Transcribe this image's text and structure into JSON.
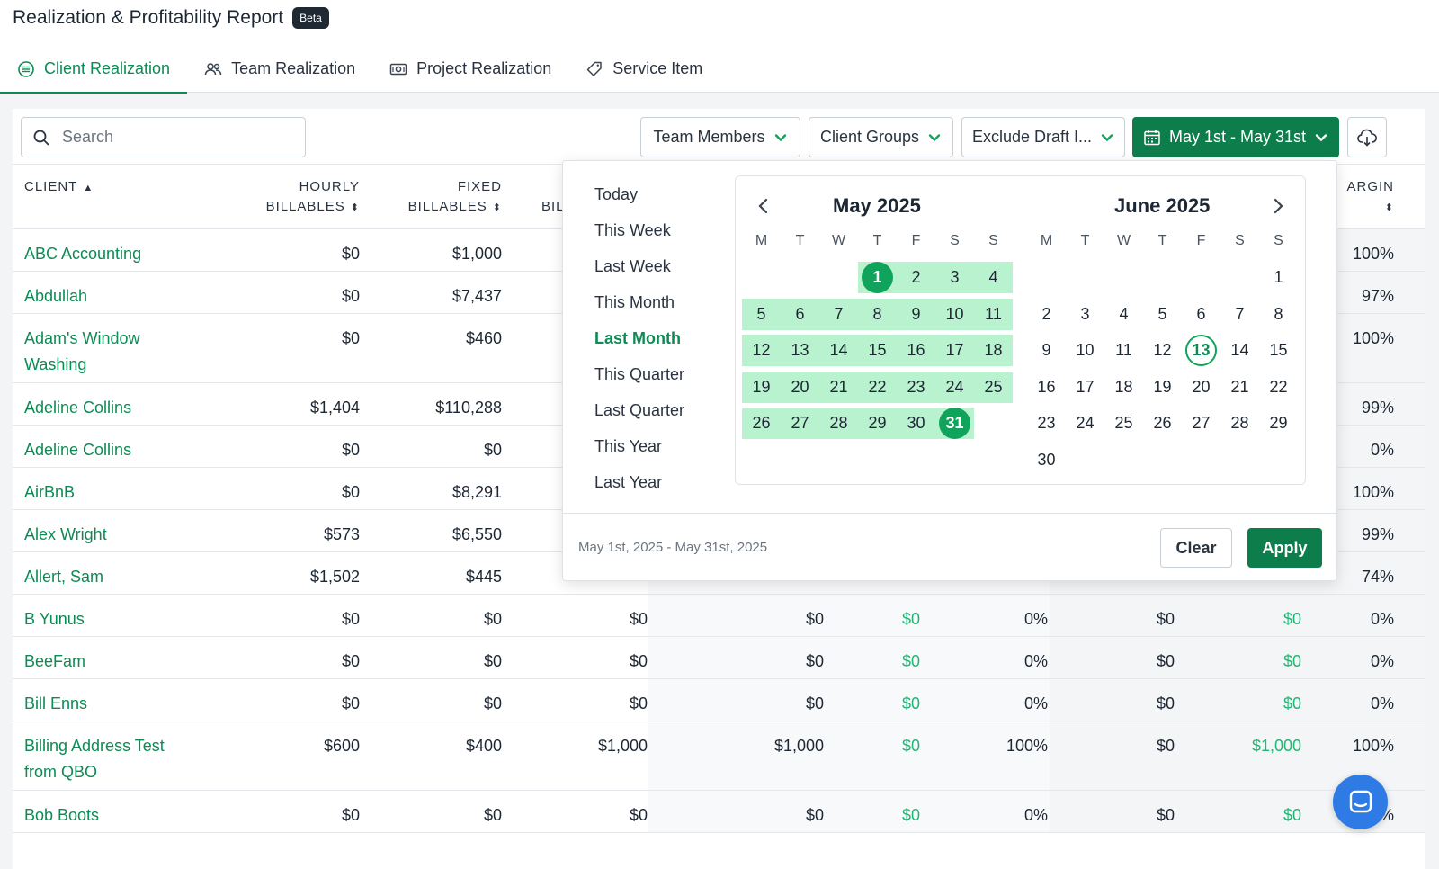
{
  "header": {
    "title": "Realization & Profitability Report",
    "badge": "Beta"
  },
  "tabs": [
    {
      "label": "Client Realization",
      "icon": "list-circle-icon",
      "active": true
    },
    {
      "label": "Team Realization",
      "icon": "users-icon",
      "active": false
    },
    {
      "label": "Project Realization",
      "icon": "money-icon",
      "active": false
    },
    {
      "label": "Service Item",
      "icon": "tag-icon",
      "active": false
    }
  ],
  "toolbar": {
    "search_placeholder": "Search",
    "team_members": "Team Members",
    "client_groups": "Client Groups",
    "exclude_draft": "Exclude Draft I...",
    "date_range": "May 1st - May 31st"
  },
  "columns": {
    "client": "CLIENT",
    "hourly_1": "HOURLY",
    "hourly_2": "BILLABLES",
    "fixed_1": "FIXED",
    "fixed_2": "BILLABLES",
    "bil": "BIL",
    "margin": "ARGIN"
  },
  "rows": [
    {
      "client": "ABC Accounting",
      "hourly": "$0",
      "fixed": "$1,000",
      "margin": "100%"
    },
    {
      "client": "Abdullah",
      "hourly": "$0",
      "fixed": "$7,437",
      "margin": "97%"
    },
    {
      "client": "Adam's Window Washing",
      "hourly": "$0",
      "fixed": "$460",
      "margin": "100%"
    },
    {
      "client": "Adeline Collins",
      "hourly": "$1,404",
      "fixed": "$110,288",
      "margin": "99%"
    },
    {
      "client": "Adeline Collins",
      "hourly": "$0",
      "fixed": "$0",
      "margin": "0%"
    },
    {
      "client": "AirBnB",
      "hourly": "$0",
      "fixed": "$8,291",
      "margin": "100%"
    },
    {
      "client": "Alex Wright",
      "hourly": "$573",
      "fixed": "$6,550",
      "margin": "99%"
    },
    {
      "client": "Allert, Sam",
      "hourly": "$1,502",
      "fixed": "$445",
      "margin": "74%"
    },
    {
      "client": "B Yunus",
      "hourly": "$0",
      "fixed": "$0",
      "total": "$0",
      "c4": "$0",
      "c5": "$0",
      "c6": "0%",
      "c7": "$0",
      "c8": "$0",
      "margin": "0%"
    },
    {
      "client": "BeeFam",
      "hourly": "$0",
      "fixed": "$0",
      "total": "$0",
      "c4": "$0",
      "c5": "$0",
      "c6": "0%",
      "c7": "$0",
      "c8": "$0",
      "margin": "0%"
    },
    {
      "client": "Bill Enns",
      "hourly": "$0",
      "fixed": "$0",
      "total": "$0",
      "c4": "$0",
      "c5": "$0",
      "c6": "0%",
      "c7": "$0",
      "c8": "$0",
      "margin": "0%"
    },
    {
      "client": "Billing Address Test from QBO",
      "hourly": "$600",
      "fixed": "$400",
      "total": "$1,000",
      "c4": "$1,000",
      "c5": "$0",
      "c6": "100%",
      "c7": "$0",
      "c8": "$1,000",
      "margin": "100%"
    },
    {
      "client": "Bob Boots",
      "hourly": "$0",
      "fixed": "$0",
      "total": "$0",
      "c4": "$0",
      "c5": "$0",
      "c6": "0%",
      "c7": "$0",
      "c8": "$0",
      "margin": "0%"
    }
  ],
  "datepicker": {
    "presets": [
      "Today",
      "This Week",
      "Last Week",
      "This Month",
      "Last Month",
      "This Quarter",
      "Last Quarter",
      "This Year",
      "Last Year"
    ],
    "active_preset": "Last Month",
    "weekdays": [
      "M",
      "T",
      "W",
      "T",
      "F",
      "S",
      "S"
    ],
    "month1": {
      "title": "May 2025",
      "start_offset": 3,
      "days": 31,
      "range_start": 1,
      "range_end": 31
    },
    "month2": {
      "title": "June 2025",
      "start_offset": 6,
      "days": 30,
      "today": 13
    },
    "range_text": "May 1st, 2025 - May 31st, 2025",
    "clear_label": "Clear",
    "apply_label": "Apply"
  },
  "colors": {
    "accent": "#0e8a54",
    "button": "#0e7d4c",
    "range": "#b9f2cf",
    "chat": "#2f7be5"
  }
}
